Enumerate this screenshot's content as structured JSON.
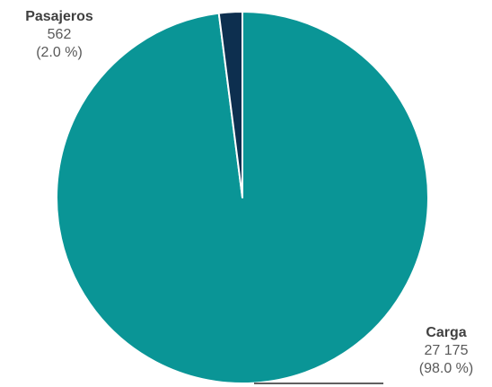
{
  "chart_data": {
    "type": "pie",
    "slices": [
      {
        "name": "Carga",
        "value": 27175,
        "value_label": "27 175",
        "percent_label": "(98.0 %)",
        "color": "#0a9596"
      },
      {
        "name": "Pasajeros",
        "value": 562,
        "value_label": "562",
        "percent_label": "(2.0 %)",
        "color": "#0d2f4f"
      }
    ],
    "start": "12 o'clock",
    "direction": "clockwise",
    "slice_border_color": "#ffffff",
    "legend": "none"
  }
}
